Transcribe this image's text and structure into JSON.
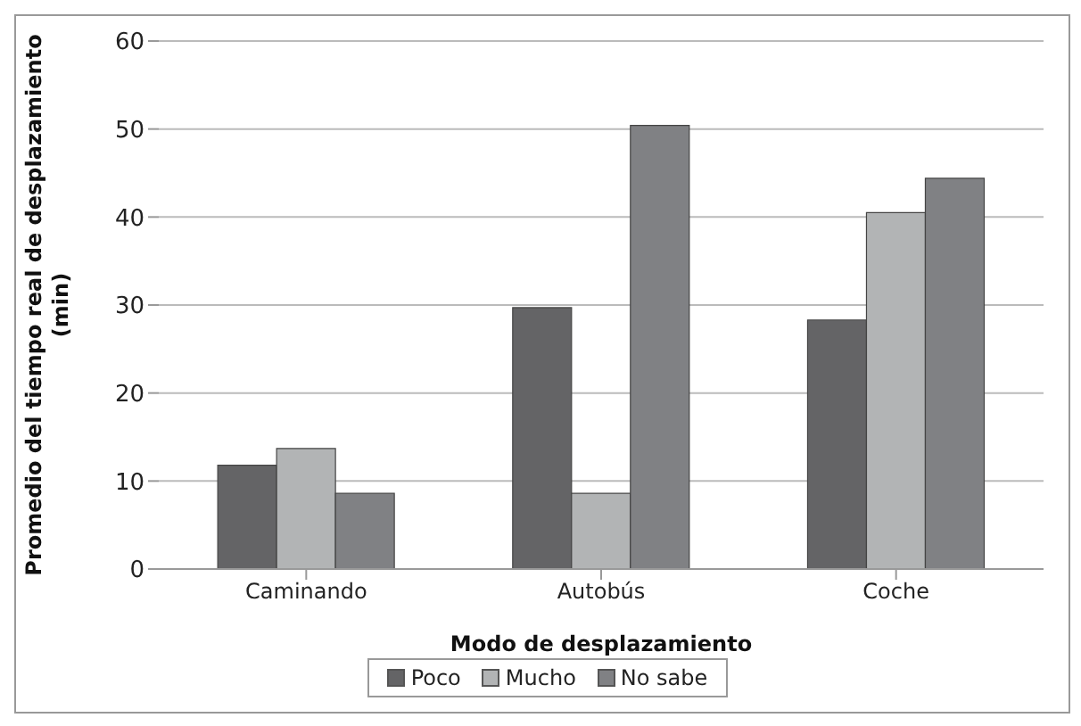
{
  "chart_data": {
    "type": "bar",
    "xlabel": "Modo de desplazamiento",
    "ylabel": "Promedio del tiempo real de desplazamiento (min)",
    "categories": [
      "Caminando",
      "Autobús",
      "Coche"
    ],
    "series": [
      {
        "name": "Poco",
        "color": "#646466",
        "values": [
          11.8,
          29.7,
          28.3
        ]
      },
      {
        "name": "Mucho",
        "color": "#b2b4b5",
        "values": [
          13.7,
          8.6,
          40.5
        ]
      },
      {
        "name": "No sabe",
        "color": "#808184",
        "values": [
          8.6,
          50.4,
          44.4
        ]
      }
    ],
    "ylim": [
      0,
      60
    ],
    "yticks": [
      0,
      10,
      20,
      30,
      40,
      50,
      60
    ],
    "grid": "y",
    "legend": "bottom"
  }
}
